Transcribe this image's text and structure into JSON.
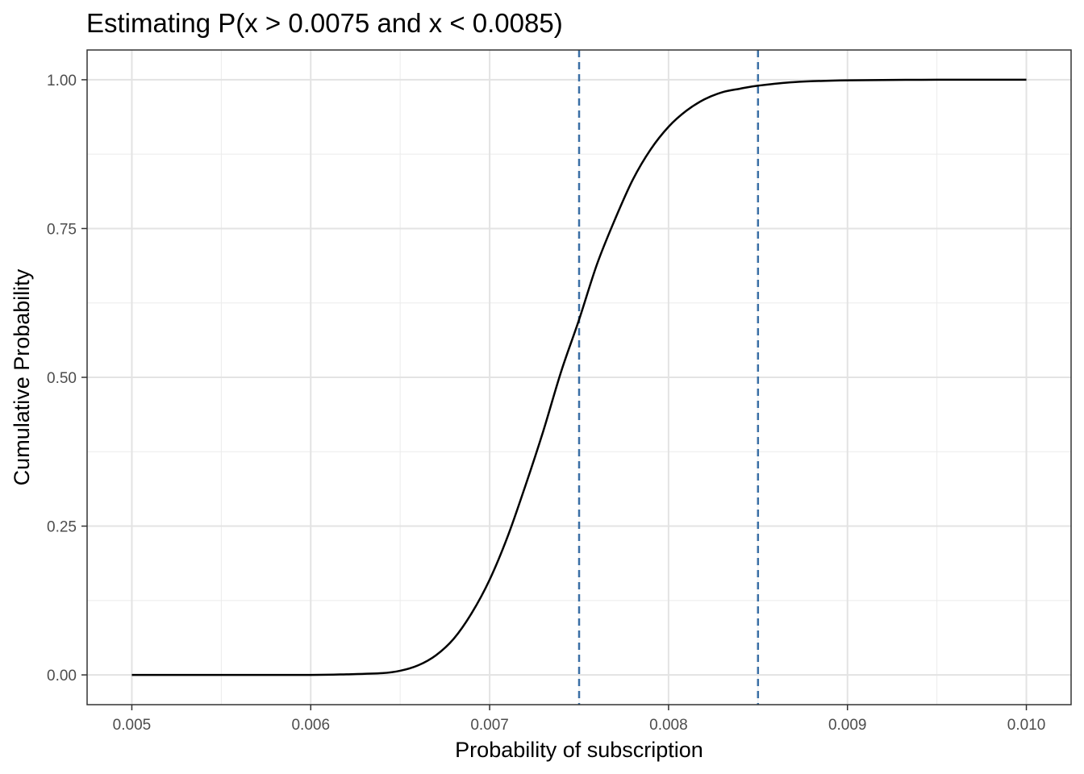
{
  "chart_data": {
    "type": "line",
    "title": "Estimating P(x > 0.0075 and x < 0.0085)",
    "xlabel": "Probability of subscription",
    "ylabel": "Cumulative Probability",
    "xlim": [
      0.00475,
      0.01025
    ],
    "ylim": [
      -0.05,
      1.05
    ],
    "x_ticks": [
      0.005,
      0.006,
      0.007,
      0.008,
      0.009,
      0.01
    ],
    "x_tick_labels": [
      "0.005",
      "0.006",
      "0.007",
      "0.008",
      "0.009",
      "0.010"
    ],
    "y_ticks": [
      0.0,
      0.25,
      0.5,
      0.75,
      1.0
    ],
    "y_tick_labels": [
      "0.00",
      "0.25",
      "0.50",
      "0.75",
      "1.00"
    ],
    "grid": true,
    "series": [
      {
        "x": [
          0.005,
          0.0055,
          0.006,
          0.0062,
          0.0064,
          0.0065,
          0.0066,
          0.0067,
          0.0068,
          0.0069,
          0.007,
          0.0071,
          0.0072,
          0.0073,
          0.0074,
          0.0075,
          0.0076,
          0.0077,
          0.0078,
          0.0079,
          0.008,
          0.0081,
          0.0082,
          0.0083,
          0.0084,
          0.0085,
          0.0087,
          0.009,
          0.0095,
          0.01
        ],
        "y": [
          0.0,
          0.0,
          0.0,
          0.001,
          0.003,
          0.007,
          0.016,
          0.033,
          0.061,
          0.104,
          0.16,
          0.232,
          0.318,
          0.41,
          0.51,
          0.597,
          0.69,
          0.765,
          0.832,
          0.883,
          0.921,
          0.948,
          0.967,
          0.979,
          0.985,
          0.99,
          0.996,
          0.999,
          1.0,
          1.0
        ],
        "color": "#000000"
      }
    ],
    "vlines": [
      {
        "x": 0.0075,
        "style": "dashed",
        "color": "#3a6fa5"
      },
      {
        "x": 0.0085,
        "style": "dashed",
        "color": "#3a6fa5"
      }
    ]
  }
}
